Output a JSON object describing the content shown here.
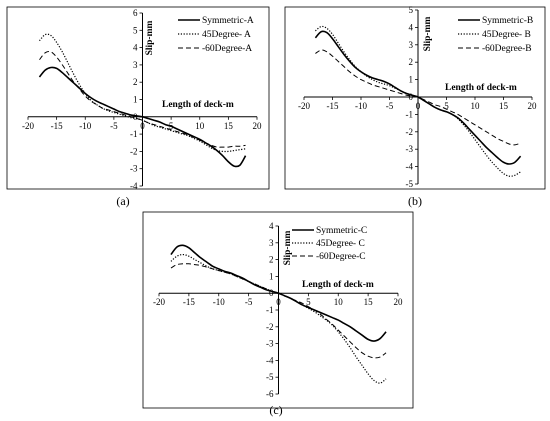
{
  "chart_data": [
    {
      "id": "a",
      "type": "line",
      "caption": "(a)",
      "xlabel": "Length of deck-m",
      "ylabel": "Slip-mm",
      "xlim": [
        -20,
        20
      ],
      "ylim": [
        -4,
        6
      ],
      "x_ticks": [
        -20,
        -15,
        -10,
        -5,
        0,
        5,
        10,
        15,
        20
      ],
      "x_tick_labels": [
        "-20",
        "-15",
        "-10",
        "-5",
        "0",
        "5",
        "10",
        "15",
        "20"
      ],
      "y_ticks": [
        -4,
        -3,
        -2,
        -1,
        0,
        1,
        2,
        3,
        4,
        5,
        6
      ],
      "y_tick_labels": [
        "-4",
        "-3",
        "-2",
        "-1",
        "0",
        "1",
        "2",
        "3",
        "4",
        "5",
        "6"
      ],
      "grid": false,
      "legend_position": "top-right",
      "series": [
        {
          "name": "Symmetric-A",
          "style": "solid",
          "x": [
            -18,
            -17,
            -16,
            -15,
            -14,
            -13,
            -12,
            -11,
            -10,
            -9,
            -8,
            -7,
            -6,
            -5,
            -4,
            -3,
            -2,
            -1,
            0,
            1,
            2,
            3,
            4,
            5,
            6,
            7,
            8,
            9,
            10,
            11,
            12,
            13,
            14,
            15,
            16,
            17,
            18
          ],
          "y": [
            2.3,
            2.7,
            2.85,
            2.8,
            2.55,
            2.25,
            1.95,
            1.65,
            1.35,
            1.1,
            0.9,
            0.75,
            0.6,
            0.45,
            0.3,
            0.2,
            0.1,
            0.05,
            0,
            -0.1,
            -0.2,
            -0.3,
            -0.45,
            -0.55,
            -0.7,
            -0.85,
            -1.0,
            -1.15,
            -1.3,
            -1.5,
            -1.7,
            -1.95,
            -2.25,
            -2.6,
            -2.85,
            -2.8,
            -2.25
          ]
        },
        {
          "name": "45Degree- A",
          "style": "dotted",
          "x": [
            -18,
            -17,
            -16,
            -15,
            -14,
            -13,
            -12,
            -11,
            -10,
            -9,
            -8,
            -7,
            -6,
            -5,
            -4,
            -3,
            -2,
            -1,
            0,
            1,
            2,
            3,
            4,
            5,
            6,
            7,
            8,
            9,
            10,
            11,
            12,
            13,
            14,
            15,
            16,
            17,
            18
          ],
          "y": [
            4.4,
            4.75,
            4.7,
            4.3,
            3.75,
            3.1,
            2.45,
            1.85,
            1.35,
            0.95,
            0.7,
            0.5,
            0.35,
            0.25,
            0.15,
            0.05,
            -0.05,
            -0.1,
            -0.2,
            -0.35,
            -0.5,
            -0.6,
            -0.7,
            -0.8,
            -0.9,
            -1.0,
            -1.1,
            -1.25,
            -1.4,
            -1.6,
            -1.8,
            -1.95,
            -2.0,
            -2.0,
            -1.95,
            -1.9,
            -1.85
          ]
        },
        {
          "name": "-60Degree-A",
          "style": "dashed",
          "x": [
            -18,
            -17,
            -16,
            -15,
            -14,
            -13,
            -12,
            -11,
            -10,
            -9,
            -8,
            -7,
            -6,
            -5,
            -4,
            -3,
            -2,
            -1,
            0,
            1,
            2,
            3,
            4,
            5,
            6,
            7,
            8,
            9,
            10,
            11,
            12,
            13,
            14,
            15,
            16,
            17,
            18
          ],
          "y": [
            3.3,
            3.7,
            3.75,
            3.45,
            3.0,
            2.5,
            2.0,
            1.6,
            1.2,
            0.9,
            0.7,
            0.5,
            0.4,
            0.3,
            0.2,
            0.1,
            0.0,
            -0.1,
            -0.2,
            -0.35,
            -0.45,
            -0.55,
            -0.65,
            -0.75,
            -0.85,
            -0.95,
            -1.05,
            -1.2,
            -1.35,
            -1.5,
            -1.65,
            -1.75,
            -1.75,
            -1.75,
            -1.7,
            -1.7,
            -1.65
          ]
        }
      ]
    },
    {
      "id": "b",
      "type": "line",
      "caption": "(b)",
      "xlabel": "Length of deck-m",
      "ylabel": "Slip-mm",
      "xlim": [
        -20,
        20
      ],
      "ylim": [
        -5,
        5
      ],
      "x_ticks": [
        -20,
        -15,
        -10,
        -5,
        0,
        5,
        10,
        15,
        20
      ],
      "x_tick_labels": [
        "-20",
        "-15",
        "-10",
        "-5",
        "0",
        "5",
        "10",
        "15",
        "20"
      ],
      "y_ticks": [
        -5,
        -4,
        -3,
        -2,
        -1,
        0,
        1,
        2,
        3,
        4,
        5
      ],
      "y_tick_labels": [
        "-5",
        "-4",
        "-3",
        "-2",
        "-1",
        "0",
        "1",
        "2",
        "3",
        "4",
        "5"
      ],
      "grid": false,
      "legend_position": "top-right",
      "series": [
        {
          "name": "Symmetric-B",
          "style": "solid",
          "x": [
            -18,
            -17,
            -16,
            -15,
            -14,
            -13,
            -12,
            -11,
            -10,
            -9,
            -8,
            -7,
            -6,
            -5,
            -4,
            -3,
            -2,
            -1,
            0,
            1,
            2,
            3,
            4,
            5,
            6,
            7,
            8,
            9,
            10,
            11,
            12,
            13,
            14,
            15,
            16,
            17,
            18
          ],
          "y": [
            3.4,
            3.75,
            3.7,
            3.35,
            2.9,
            2.45,
            2.05,
            1.7,
            1.45,
            1.25,
            1.1,
            1.0,
            0.9,
            0.75,
            0.55,
            0.35,
            0.2,
            0.1,
            0.0,
            -0.2,
            -0.4,
            -0.6,
            -0.75,
            -0.85,
            -1.0,
            -1.2,
            -1.5,
            -1.85,
            -2.2,
            -2.55,
            -2.9,
            -3.2,
            -3.5,
            -3.75,
            -3.85,
            -3.75,
            -3.4
          ]
        },
        {
          "name": "45Degree- B",
          "style": "dotted",
          "x": [
            -18,
            -17,
            -16,
            -15,
            -14,
            -13,
            -12,
            -11,
            -10,
            -9,
            -8,
            -7,
            -6,
            -5,
            -4,
            -3,
            -2,
            -1,
            0,
            1,
            2,
            3,
            4,
            5,
            6,
            7,
            8,
            9,
            10,
            11,
            12,
            13,
            14,
            15,
            16,
            17,
            18
          ],
          "y": [
            3.8,
            4.05,
            3.95,
            3.6,
            3.1,
            2.6,
            2.15,
            1.75,
            1.45,
            1.2,
            1.0,
            0.85,
            0.75,
            0.65,
            0.5,
            0.35,
            0.2,
            0.1,
            0.0,
            -0.2,
            -0.4,
            -0.6,
            -0.75,
            -0.85,
            -1.0,
            -1.25,
            -1.6,
            -2.0,
            -2.45,
            -2.9,
            -3.35,
            -3.75,
            -4.1,
            -4.4,
            -4.55,
            -4.5,
            -4.3
          ]
        },
        {
          "name": "-60Degree-B",
          "style": "dashed",
          "x": [
            -18,
            -17,
            -16,
            -15,
            -14,
            -13,
            -12,
            -11,
            -10,
            -9,
            -8,
            -7,
            -6,
            -5,
            -4,
            -3,
            -2,
            -1,
            0,
            1,
            2,
            3,
            4,
            5,
            6,
            7,
            8,
            9,
            10,
            11,
            12,
            13,
            14,
            15,
            16,
            17,
            18
          ],
          "y": [
            2.5,
            2.7,
            2.6,
            2.35,
            2.05,
            1.75,
            1.45,
            1.2,
            1.0,
            0.85,
            0.7,
            0.6,
            0.5,
            0.4,
            0.3,
            0.2,
            0.1,
            0.05,
            0.0,
            -0.15,
            -0.3,
            -0.45,
            -0.55,
            -0.7,
            -0.85,
            -1.0,
            -1.2,
            -1.4,
            -1.6,
            -1.8,
            -2.0,
            -2.2,
            -2.4,
            -2.55,
            -2.7,
            -2.75,
            -2.65
          ]
        }
      ]
    },
    {
      "id": "c",
      "type": "line",
      "caption": "(c)",
      "xlabel": "Length of deck-m",
      "ylabel": "Slip-mm",
      "xlim": [
        -20,
        20
      ],
      "ylim": [
        -6,
        4
      ],
      "x_ticks": [
        -20,
        -15,
        -10,
        -5,
        0,
        5,
        10,
        15,
        20
      ],
      "x_tick_labels": [
        "-20",
        "-15",
        "-10",
        "-5",
        "0",
        "5",
        "10",
        "15",
        "20"
      ],
      "y_ticks": [
        -6,
        -5,
        -4,
        -3,
        -2,
        -1,
        0,
        1,
        2,
        3,
        4
      ],
      "y_tick_labels": [
        "-6",
        "-5",
        "-4",
        "-3",
        "-2",
        "-1",
        "0",
        "1",
        "2",
        "3",
        "4"
      ],
      "grid": false,
      "legend_position": "top-right",
      "series": [
        {
          "name": "Symmetric-C",
          "style": "solid",
          "x": [
            -18,
            -17,
            -16,
            -15,
            -14,
            -13,
            -12,
            -11,
            -10,
            -9,
            -8,
            -7,
            -6,
            -5,
            -4,
            -3,
            -2,
            -1,
            0,
            1,
            2,
            3,
            4,
            5,
            6,
            7,
            8,
            9,
            10,
            11,
            12,
            13,
            14,
            15,
            16,
            17,
            18
          ],
          "y": [
            2.3,
            2.75,
            2.85,
            2.7,
            2.4,
            2.1,
            1.85,
            1.6,
            1.45,
            1.3,
            1.2,
            1.05,
            0.9,
            0.7,
            0.5,
            0.35,
            0.2,
            0.1,
            0.0,
            -0.15,
            -0.3,
            -0.5,
            -0.7,
            -0.85,
            -1.0,
            -1.15,
            -1.3,
            -1.45,
            -1.6,
            -1.8,
            -2.0,
            -2.25,
            -2.5,
            -2.75,
            -2.85,
            -2.7,
            -2.3
          ]
        },
        {
          "name": "45Degree- C",
          "style": "dotted",
          "x": [
            -18,
            -17,
            -16,
            -15,
            -14,
            -13,
            -12,
            -11,
            -10,
            -9,
            -8,
            -7,
            -6,
            -5,
            -4,
            -3,
            -2,
            -1,
            0,
            1,
            2,
            3,
            4,
            5,
            6,
            7,
            8,
            9,
            10,
            11,
            12,
            13,
            14,
            15,
            16,
            17,
            18
          ],
          "y": [
            1.9,
            2.2,
            2.3,
            2.2,
            2.0,
            1.8,
            1.6,
            1.45,
            1.35,
            1.25,
            1.15,
            1.0,
            0.85,
            0.7,
            0.55,
            0.4,
            0.25,
            0.1,
            0.0,
            -0.15,
            -0.3,
            -0.5,
            -0.7,
            -0.9,
            -1.1,
            -1.35,
            -1.6,
            -1.9,
            -2.3,
            -2.75,
            -3.25,
            -3.8,
            -4.3,
            -4.8,
            -5.2,
            -5.35,
            -5.1
          ]
        },
        {
          "name": "-60Degree-C",
          "style": "dashed",
          "x": [
            -18,
            -17,
            -16,
            -15,
            -14,
            -13,
            -12,
            -11,
            -10,
            -9,
            -8,
            -7,
            -6,
            -5,
            -4,
            -3,
            -2,
            -1,
            0,
            1,
            2,
            3,
            4,
            5,
            6,
            7,
            8,
            9,
            10,
            11,
            12,
            13,
            14,
            15,
            16,
            17,
            18
          ],
          "y": [
            1.5,
            1.7,
            1.75,
            1.75,
            1.7,
            1.65,
            1.55,
            1.45,
            1.35,
            1.25,
            1.15,
            1.0,
            0.85,
            0.7,
            0.55,
            0.4,
            0.25,
            0.1,
            0.0,
            -0.15,
            -0.3,
            -0.45,
            -0.6,
            -0.8,
            -1.0,
            -1.25,
            -1.55,
            -1.85,
            -2.2,
            -2.55,
            -2.9,
            -3.25,
            -3.55,
            -3.75,
            -3.85,
            -3.8,
            -3.55
          ]
        }
      ]
    }
  ]
}
